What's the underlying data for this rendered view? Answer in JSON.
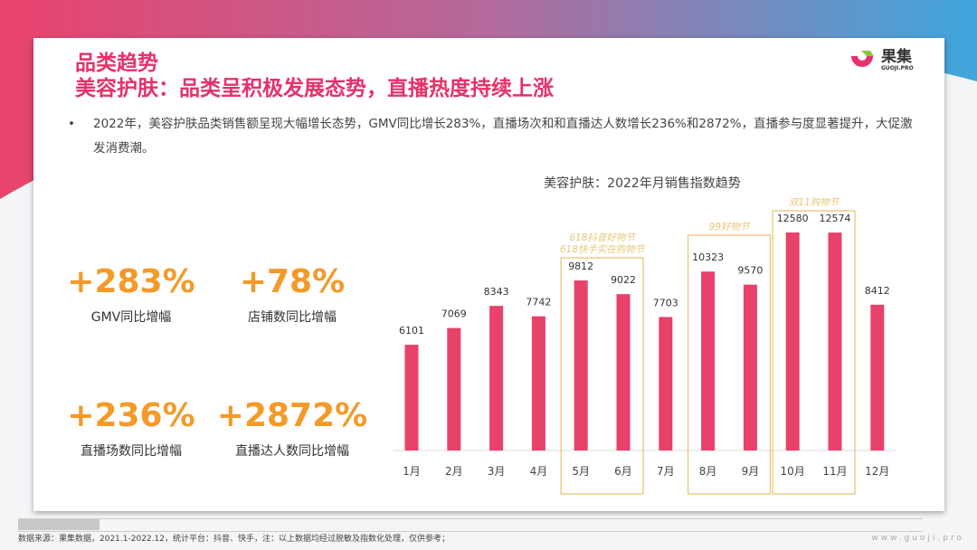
{
  "colors": {
    "accent": "#e6316a",
    "bar": "#e8416a",
    "kpi": "#f39a28",
    "box": "#e8c77a"
  },
  "header": {
    "title": "品类趋势",
    "subtitle": "美容护肤：品类呈积极发展态势，直播热度持续上涨"
  },
  "logo": {
    "name": "果集",
    "sub": "GUOJI.PRO"
  },
  "bullet": "2022年，美容护肤品类销售额呈现大幅增长态势，GMV同比增长283%，直播场次和和直播达人数增长236%和2872%，直播参与度显著提升，大促激发消费潮。",
  "kpis": [
    {
      "value": "+283%",
      "label": "GMV同比增幅"
    },
    {
      "value": "+78%",
      "label": "店铺数同比增幅"
    },
    {
      "value": "+236%",
      "label": "直播场数同比增幅"
    },
    {
      "value": "+2872%",
      "label": "直播达人数同比增幅"
    }
  ],
  "chart_data": {
    "type": "bar",
    "title": "美容护肤：2022年月销售指数趋势",
    "categories": [
      "1月",
      "2月",
      "3月",
      "4月",
      "5月",
      "6月",
      "7月",
      "8月",
      "9月",
      "10月",
      "11月",
      "12月"
    ],
    "values": [
      6101,
      7069,
      8343,
      7742,
      9812,
      9022,
      7703,
      10323,
      9570,
      12580,
      12574,
      8412
    ],
    "annotations": [
      {
        "label": "618抖音好物节\n618快手实在购物节",
        "months": [
          "5月",
          "6月"
        ]
      },
      {
        "label": "99好物节",
        "months": [
          "8月",
          "9月"
        ]
      },
      {
        "label": "双11购物节",
        "months": [
          "10月",
          "11月"
        ]
      }
    ],
    "grid": false
  },
  "footer": {
    "source": "数据来源：果集数据，2021.1-2022.12，统计平台：抖音、快手，注：以上数据均经过脱敏及指数化处理，仅供参考；",
    "url": "www.guoji.pro"
  }
}
